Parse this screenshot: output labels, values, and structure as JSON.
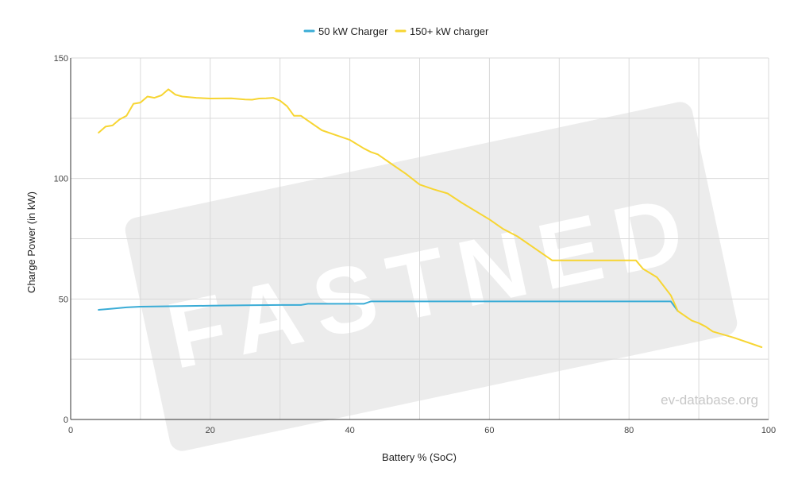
{
  "chart_data": {
    "type": "line",
    "xlabel": "Battery % (SoC)",
    "ylabel": "Charge Power (in kW)",
    "xlim": [
      0,
      100
    ],
    "ylim": [
      0,
      150
    ],
    "x_ticks": [
      0,
      20,
      40,
      60,
      80,
      100
    ],
    "y_ticks": [
      0,
      50,
      100,
      150
    ],
    "grid": true,
    "legend_position": "top-center",
    "series": [
      {
        "name": "50 kW Charger",
        "color": "#3aacd6",
        "points": [
          [
            4,
            45.5
          ],
          [
            6,
            46
          ],
          [
            8,
            46.5
          ],
          [
            10,
            46.8
          ],
          [
            15,
            47
          ],
          [
            20,
            47.2
          ],
          [
            25,
            47.4
          ],
          [
            30,
            47.5
          ],
          [
            33,
            47.5
          ],
          [
            34,
            48
          ],
          [
            36,
            48
          ],
          [
            40,
            48
          ],
          [
            42,
            48
          ],
          [
            43,
            49
          ],
          [
            50,
            49
          ],
          [
            60,
            49
          ],
          [
            70,
            49
          ],
          [
            80,
            49
          ],
          [
            85,
            49
          ],
          [
            86,
            49
          ],
          [
            87,
            45
          ]
        ]
      },
      {
        "name": "150+ kW charger",
        "color": "#f7d532",
        "points": [
          [
            4,
            119
          ],
          [
            5,
            121.5
          ],
          [
            6,
            122
          ],
          [
            7,
            124.5
          ],
          [
            8,
            126
          ],
          [
            9,
            131
          ],
          [
            10,
            131.5
          ],
          [
            11,
            134
          ],
          [
            12,
            133.5
          ],
          [
            13,
            134.5
          ],
          [
            14,
            137
          ],
          [
            15,
            134.8
          ],
          [
            16,
            134
          ],
          [
            18,
            133.5
          ],
          [
            20,
            133.2
          ],
          [
            23,
            133.3
          ],
          [
            25,
            132.8
          ],
          [
            26,
            132.7
          ],
          [
            27,
            133.2
          ],
          [
            28,
            133.3
          ],
          [
            29,
            133.5
          ],
          [
            30,
            132.3
          ],
          [
            31,
            130
          ],
          [
            32,
            126
          ],
          [
            33,
            126
          ],
          [
            34,
            124
          ],
          [
            36,
            120
          ],
          [
            38,
            118
          ],
          [
            40,
            116
          ],
          [
            42,
            112.5
          ],
          [
            43,
            111
          ],
          [
            44,
            110
          ],
          [
            46,
            106
          ],
          [
            48,
            102
          ],
          [
            50,
            97.5
          ],
          [
            52,
            95.5
          ],
          [
            54,
            93.8
          ],
          [
            56,
            90
          ],
          [
            58,
            86.5
          ],
          [
            60,
            83
          ],
          [
            62,
            79
          ],
          [
            64,
            76
          ],
          [
            66,
            72
          ],
          [
            68,
            68
          ],
          [
            69,
            66
          ],
          [
            70,
            66
          ],
          [
            75,
            66
          ],
          [
            80,
            66
          ],
          [
            81,
            66
          ],
          [
            82,
            62.5
          ],
          [
            84,
            59
          ],
          [
            86,
            51.5
          ],
          [
            87,
            45
          ],
          [
            88,
            43
          ],
          [
            89,
            41
          ],
          [
            90,
            40
          ],
          [
            91,
            38.5
          ],
          [
            92,
            36.5
          ],
          [
            95,
            34
          ],
          [
            99,
            30
          ]
        ]
      }
    ],
    "watermark": "ev-database.org",
    "brand_mark": "FASTNED"
  }
}
